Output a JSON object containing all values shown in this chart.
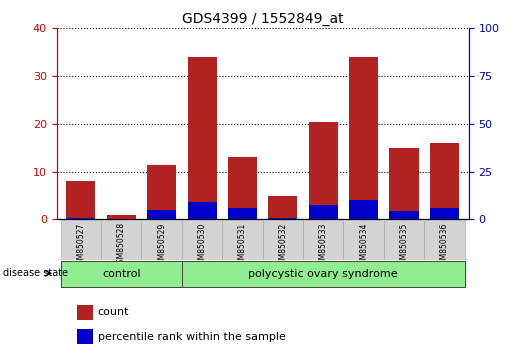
{
  "title": "GDS4399 / 1552849_at",
  "samples": [
    "GSM850527",
    "GSM850528",
    "GSM850529",
    "GSM850530",
    "GSM850531",
    "GSM850532",
    "GSM850533",
    "GSM850534",
    "GSM850535",
    "GSM850536"
  ],
  "red_values": [
    8,
    1,
    11.5,
    34,
    13,
    5,
    20.5,
    34,
    15,
    16
  ],
  "blue_values": [
    1,
    0.5,
    5,
    9,
    6,
    1,
    7.5,
    10,
    4.5,
    6
  ],
  "red_color": "#b22222",
  "blue_color": "#0000cc",
  "ylim_left": [
    0,
    40
  ],
  "ylim_right": [
    0,
    100
  ],
  "yticks_left": [
    0,
    10,
    20,
    30,
    40
  ],
  "yticks_right": [
    0,
    25,
    50,
    75,
    100
  ],
  "control_count": 3,
  "bar_width": 0.72,
  "legend_count": "count",
  "legend_percentile": "percentile rank within the sample",
  "background_color": "#ffffff",
  "xlabel_color_left": "#cc0000",
  "xlabel_color_right": "#0000cc",
  "tick_bg_color": "#d3d3d3",
  "green_color": "#90ee90"
}
